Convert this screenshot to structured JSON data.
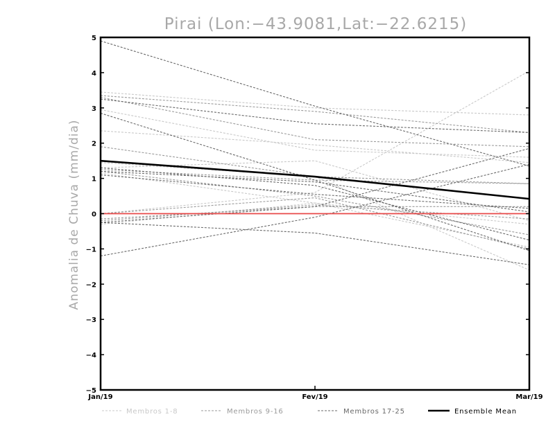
{
  "chart_data": {
    "type": "line",
    "title": "Pirai (Lon:−43.9081,Lat:−22.6215)",
    "xlabel": "",
    "ylabel": "Anomalia de Chuva (mm/dia)",
    "categories": [
      "Jan/19",
      "Fev/19",
      "Mar/19"
    ],
    "ylim": [
      -5,
      5
    ],
    "yticks": [
      "5",
      "4",
      "3",
      "2",
      "1",
      "0",
      "−1",
      "−2",
      "−3",
      "−4",
      "−5"
    ],
    "ytick_values": [
      5,
      4,
      3,
      2,
      1,
      0,
      -1,
      -2,
      -3,
      -4,
      -5
    ],
    "zero_line_color": "#e84848",
    "series_groups": [
      {
        "name": "Membros 1-8",
        "color": "#c8c8c8",
        "members": [
          [
            3.45,
            3.0,
            2.8
          ],
          [
            2.95,
            1.8,
            1.6
          ],
          [
            2.35,
            1.95,
            1.45
          ],
          [
            1.3,
            1.5,
            -0.2
          ],
          [
            0.0,
            0.6,
            4.05
          ],
          [
            -0.3,
            0.3,
            -0.3
          ],
          [
            1.15,
            0.3,
            -0.95
          ],
          [
            1.45,
            1.05,
            -1.6
          ]
        ]
      },
      {
        "name": "Membros 9-16",
        "color": "#9a9a9a",
        "members": [
          [
            3.35,
            2.9,
            2.3
          ],
          [
            3.3,
            2.1,
            1.9
          ],
          [
            1.9,
            1.05,
            0.85
          ],
          [
            1.25,
            0.95,
            0.85
          ],
          [
            -0.15,
            0.2,
            0.2
          ],
          [
            1.2,
            0.5,
            -0.6
          ],
          [
            -0.2,
            0.25,
            -0.15
          ],
          [
            0.0,
            0.45,
            -1.0
          ]
        ]
      },
      {
        "name": "Membros 17-25",
        "color": "#686868",
        "members": [
          [
            4.9,
            3.05,
            1.35
          ],
          [
            3.25,
            2.55,
            2.3
          ],
          [
            2.85,
            0.95,
            -1.05
          ],
          [
            1.3,
            0.8,
            -0.75
          ],
          [
            1.2,
            0.9,
            0.05
          ],
          [
            -1.2,
            -0.1,
            1.4
          ],
          [
            -0.25,
            0.2,
            1.85
          ],
          [
            -0.25,
            -0.55,
            -1.45
          ],
          [
            1.1,
            0.55,
            0.15
          ]
        ]
      }
    ],
    "ensemble_mean": {
      "name": "Ensemble Mean",
      "color": "#000000",
      "values": [
        1.5,
        1.05,
        0.42
      ]
    },
    "legend": [
      "Membros 1-8",
      "Membros 9-16",
      "Membros 17-25",
      "Ensemble Mean"
    ],
    "legend_position": "bottom",
    "grid": false
  }
}
